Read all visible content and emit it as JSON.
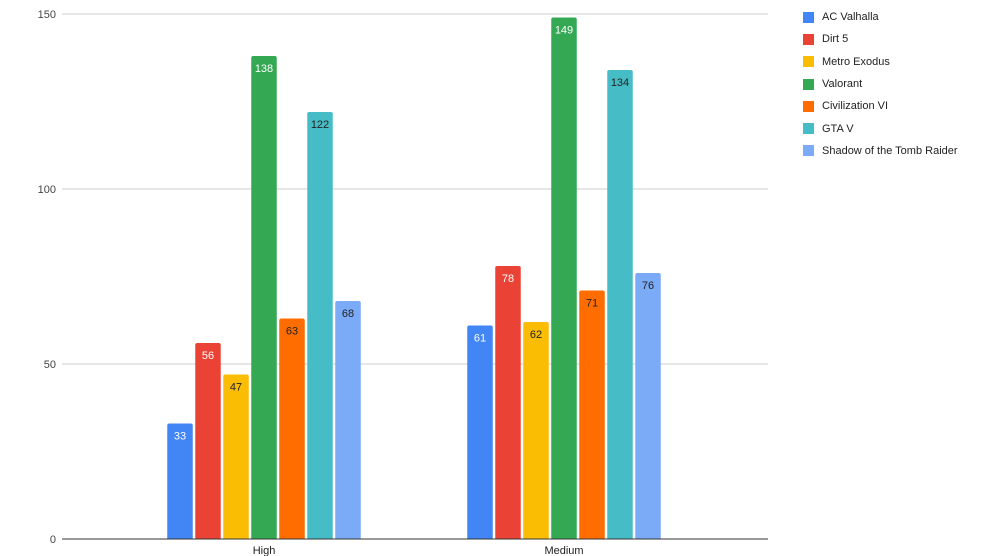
{
  "chart_data": {
    "type": "bar",
    "title": "",
    "xlabel": "",
    "ylabel": "",
    "categories": [
      "High",
      "Medium"
    ],
    "ylim": [
      0,
      150
    ],
    "yticks": [
      0,
      50,
      100,
      150
    ],
    "grid": true,
    "legend_position": "right",
    "series": [
      {
        "name": "AC Valhalla",
        "color": "#4285F4",
        "label_color": "#ffffff",
        "values": [
          33,
          61
        ]
      },
      {
        "name": "Dirt 5",
        "color": "#EA4335",
        "label_color": "#ffffff",
        "values": [
          56,
          78
        ]
      },
      {
        "name": "Metro Exodus",
        "color": "#FBBC04",
        "label_color": "#222222",
        "values": [
          47,
          62
        ]
      },
      {
        "name": "Valorant",
        "color": "#34A853",
        "label_color": "#ffffff",
        "values": [
          138,
          149
        ]
      },
      {
        "name": "Civilization VI",
        "color": "#FF6D01",
        "label_color": "#222222",
        "values": [
          63,
          71
        ]
      },
      {
        "name": "GTA V",
        "color": "#46BDC6",
        "label_color": "#222222",
        "values": [
          122,
          134
        ]
      },
      {
        "name": "Shadow of the Tomb Raider",
        "color": "#7BAAF7",
        "label_color": "#222222",
        "values": [
          68,
          76
        ]
      }
    ]
  }
}
